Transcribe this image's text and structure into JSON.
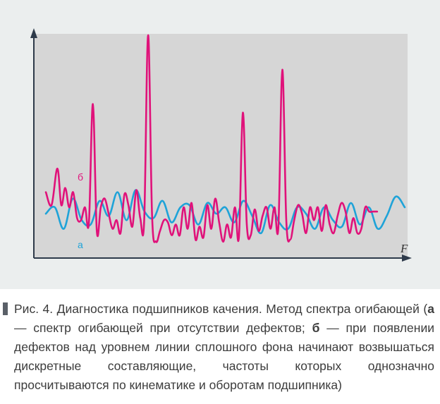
{
  "chart_data": {
    "type": "line",
    "xlabel": "F",
    "ylabel": "",
    "grid": false,
    "x_range": [
      0,
      100
    ],
    "y_range": [
      0,
      100
    ],
    "series": [
      {
        "name": "б",
        "color": "#e0127a",
        "x": [
          0,
          1.6,
          3.2,
          4.3,
          5.4,
          6.5,
          7.6,
          8.7,
          9.8,
          10.9,
          12,
          13.1,
          14.2,
          15.3,
          16.4,
          17.5,
          18.6,
          19.7,
          20.8,
          21.9,
          23,
          24.1,
          25.2,
          26.3,
          27.4,
          28.5,
          29.6,
          30.7,
          31.8,
          32.9,
          34,
          35.1,
          36.2,
          37.3,
          38.4,
          39.5,
          40.6,
          41.7,
          42.8,
          43.9,
          45,
          46.1,
          47.2,
          48.3,
          49.4,
          50.5,
          51.6,
          52.7,
          53.8,
          54.9,
          56,
          57.1,
          58.2,
          59.3,
          60.4,
          61.5,
          62.6,
          63.7,
          64.8,
          65.9,
          67,
          68.1,
          69.2,
          70.3,
          71.4,
          72.5,
          73.6,
          74.7,
          75.8,
          76.9,
          78,
          79.1,
          80.2,
          81.3,
          82.4,
          83.5,
          84.6,
          85.7,
          86.8,
          87.9,
          89,
          90.1,
          91.2,
          92.3
        ],
        "y": [
          27,
          21,
          38,
          21,
          29,
          20,
          27,
          15,
          14,
          20,
          13,
          68,
          9,
          20,
          24,
          17,
          10,
          14,
          8,
          26,
          21,
          11,
          28,
          15,
          14,
          100,
          16,
          4,
          9,
          14,
          13,
          7,
          12,
          7,
          20,
          10,
          22,
          5,
          11,
          6,
          21,
          10,
          24,
          13,
          4,
          12,
          6,
          20,
          6,
          64,
          12,
          7,
          19,
          9,
          16,
          20,
          10,
          20,
          11,
          84,
          14,
          5,
          14,
          21,
          17,
          8,
          20,
          14,
          20,
          9,
          21,
          12,
          8,
          16,
          22,
          18,
          8,
          15,
          8,
          10,
          20,
          18,
          18,
          18
        ],
        "label": "б"
      },
      {
        "name": "а",
        "color": "#1fa3d8",
        "x": [
          0,
          2.5,
          5,
          7.5,
          10,
          12.5,
          15,
          17.5,
          20,
          22.5,
          25,
          27.5,
          30,
          32.5,
          35,
          37.5,
          40,
          42.5,
          45,
          47.5,
          50,
          52.5,
          55,
          57.5,
          60,
          62.5,
          65,
          67.5,
          70,
          72.5,
          75,
          77.5,
          80,
          82.5,
          85,
          87.5,
          90,
          92.5,
          95,
          97.5,
          100
        ],
        "y": [
          17,
          20,
          10,
          24,
          14,
          12,
          23,
          16,
          27,
          14,
          28,
          18,
          15,
          23,
          13,
          20,
          21,
          12,
          22,
          17,
          20,
          13,
          23,
          16,
          8,
          21,
          13,
          10,
          20,
          17,
          10,
          20,
          14,
          11,
          22,
          12,
          20,
          10,
          16,
          25,
          20
        ],
        "label": "а"
      }
    ]
  },
  "caption": {
    "prefix": "Рис. 4. Диагностика подшипников качения. Метод спектра огибающей (",
    "term_a": "а",
    "text_a": " — спектр огибающей при отсутствии дефектов; ",
    "term_b": "б",
    "text_b": " — при появлении дефектов над уровнем линии сплошного фона начинают возвышаться дискретные составляющие, частоты которых однозначно просчитываются по кинематике и оборотам подшипника)"
  },
  "colors": {
    "plot_area": "#d6d6d6",
    "figure_bg": "#ebeeee",
    "axis": "#2e3a4a"
  }
}
